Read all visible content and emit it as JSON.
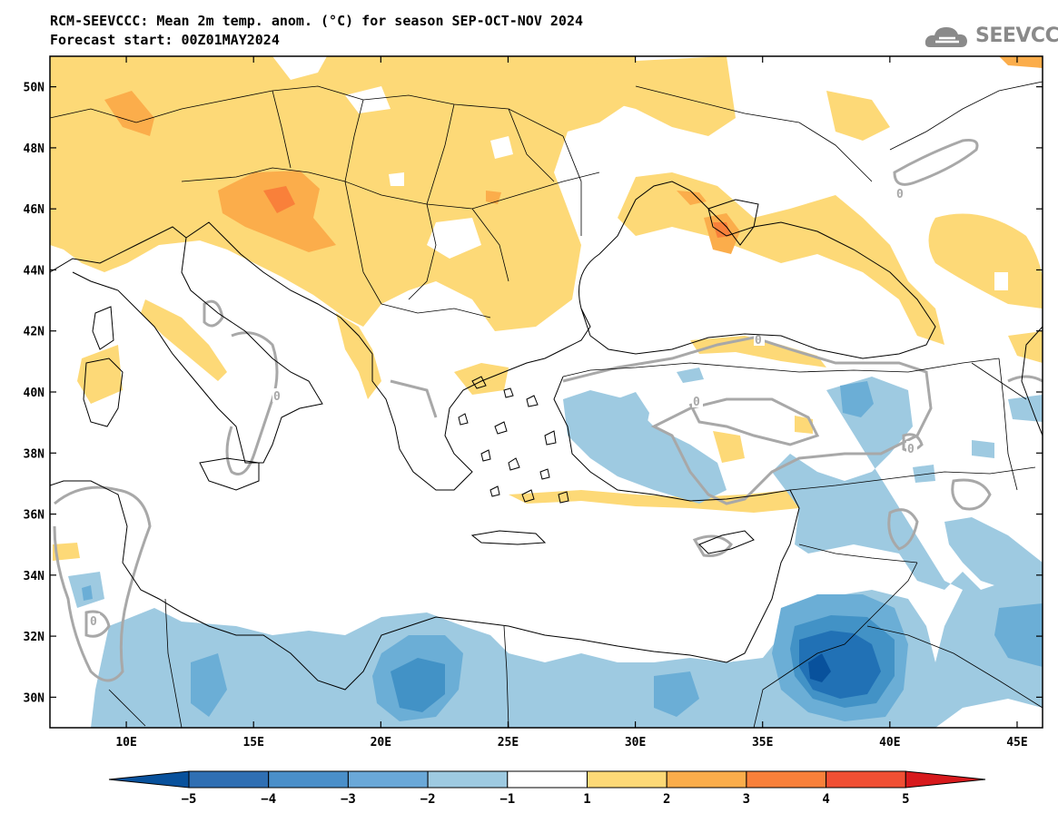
{
  "header": {
    "title_line1": "RCM-SEEVCCC: Mean 2m temp. anom. (°C) for season SEP-OCT-NOV 2024",
    "title_line2": "Forecast start: 00Z01MAY2024",
    "logo_text": "SEEVCCC",
    "logo_icon": "cloud-icon"
  },
  "map": {
    "lon_range": [
      7,
      46
    ],
    "lat_range": [
      29,
      51
    ],
    "lon_ticks": [
      "10E",
      "15E",
      "20E",
      "25E",
      "30E",
      "35E",
      "40E",
      "45E"
    ],
    "lon_values": [
      10,
      15,
      20,
      25,
      30,
      35,
      40,
      45
    ],
    "lat_ticks": [
      "30N",
      "32N",
      "34N",
      "36N",
      "38N",
      "40N",
      "42N",
      "44N",
      "46N",
      "48N",
      "50N"
    ],
    "lat_values": [
      30,
      32,
      34,
      36,
      38,
      40,
      42,
      44,
      46,
      48,
      50
    ],
    "contour_label": "0",
    "colors": {
      "warm_1_2": "#fdd977",
      "warm_2_3": "#fbad4b",
      "warm_3_4": "#f9803a",
      "warm_4_5": "#f04f33",
      "cold_1_2": "#9ecae1",
      "cold_2_3": "#6baed6",
      "cold_3_4": "#4292c6",
      "cold_4_5": "#2171b5",
      "cold_5": "#08519c",
      "contour": "#a8a8a8"
    }
  },
  "colorbar": {
    "labels": [
      "-5",
      "-4",
      "-3",
      "-2",
      "-1",
      "1",
      "2",
      "3",
      "4",
      "5"
    ],
    "colors": [
      "#08519c",
      "#2f6fb3",
      "#4a8fc9",
      "#6aa8d8",
      "#9ecae1",
      "#ffffff",
      "#fdd977",
      "#fbad4b",
      "#f9803a",
      "#f04f33",
      "#d7191c"
    ]
  }
}
